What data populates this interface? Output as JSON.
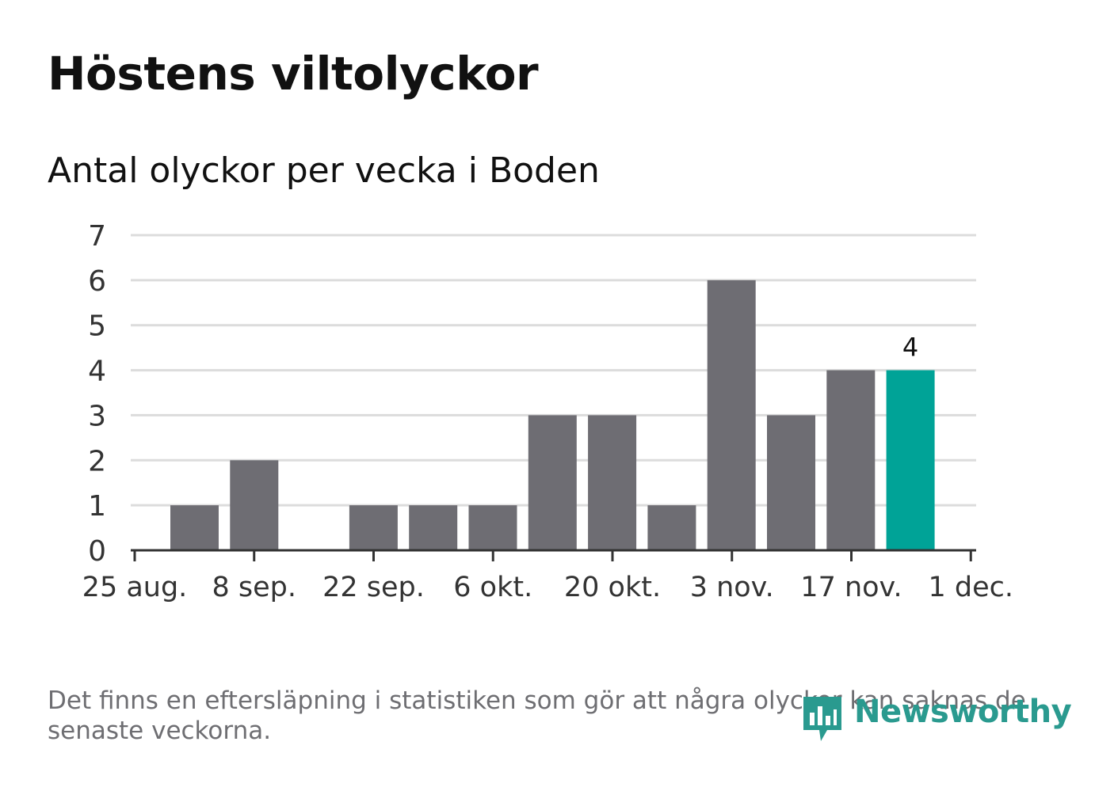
{
  "title": "Höstens viltolyckor",
  "subtitle": "Antal olyckor per vecka i Boden",
  "note": "Det finns en eftersläpning i statistiken som gör att några olyckor kan saknas de senaste veckorna.",
  "logo": {
    "text": "Newsworthy",
    "icon": "newsworthy-logo-icon"
  },
  "colors": {
    "bar": "#6e6d73",
    "highlight": "#00a397",
    "grid": "#dcdcdc",
    "axis": "#333333"
  },
  "chart_data": {
    "type": "bar",
    "title": "Antal olyckor per vecka i Boden",
    "xlabel": "",
    "ylabel": "",
    "ylim": [
      0,
      7
    ],
    "yticks": [
      0,
      1,
      2,
      3,
      4,
      5,
      6,
      7
    ],
    "x_ticks": [
      "25 aug.",
      "8 sep.",
      "22 sep.",
      "6 okt.",
      "20 okt.",
      "3 nov.",
      "17 nov.",
      "1 dec."
    ],
    "grid": true,
    "weeks": [
      "1 sep.",
      "8 sep.",
      "15 sep.",
      "22 sep.",
      "29 sep.",
      "6 okt.",
      "13 okt.",
      "20 okt.",
      "27 okt.",
      "3 nov.",
      "10 nov.",
      "17 nov.",
      "24 nov."
    ],
    "values": [
      1,
      2,
      0,
      1,
      1,
      1,
      3,
      3,
      1,
      6,
      3,
      4,
      4
    ],
    "highlight_index": 12,
    "highlight_label": "4"
  }
}
